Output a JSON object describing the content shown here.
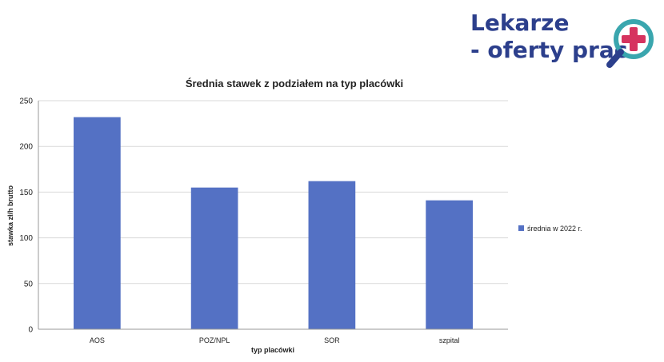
{
  "logo": {
    "line1": "Lekarze",
    "line2": "- oferty prac"
  },
  "chart_data": {
    "type": "bar",
    "title": "Średnia stawek z podziałem na typ placówki",
    "xlabel": "typ placówki",
    "ylabel": "stawka zł/h brutto",
    "categories": [
      "AOS",
      "POZ/NPL",
      "SOR",
      "szpital"
    ],
    "series": [
      {
        "name": "średnia w 2022 r.",
        "values": [
          232,
          155,
          162,
          141
        ],
        "color": "#5471c4"
      }
    ],
    "ylim": [
      0,
      250
    ],
    "yticks": [
      0,
      50,
      100,
      150,
      200,
      250
    ],
    "grid": true,
    "legend_position": "right"
  },
  "colors": {
    "logo_text": "#2c3f8c",
    "logo_ring": "#3aa6ae",
    "logo_cross": "#d6335f",
    "axis": "#9a9a9a",
    "grid": "#d9d9d9"
  }
}
